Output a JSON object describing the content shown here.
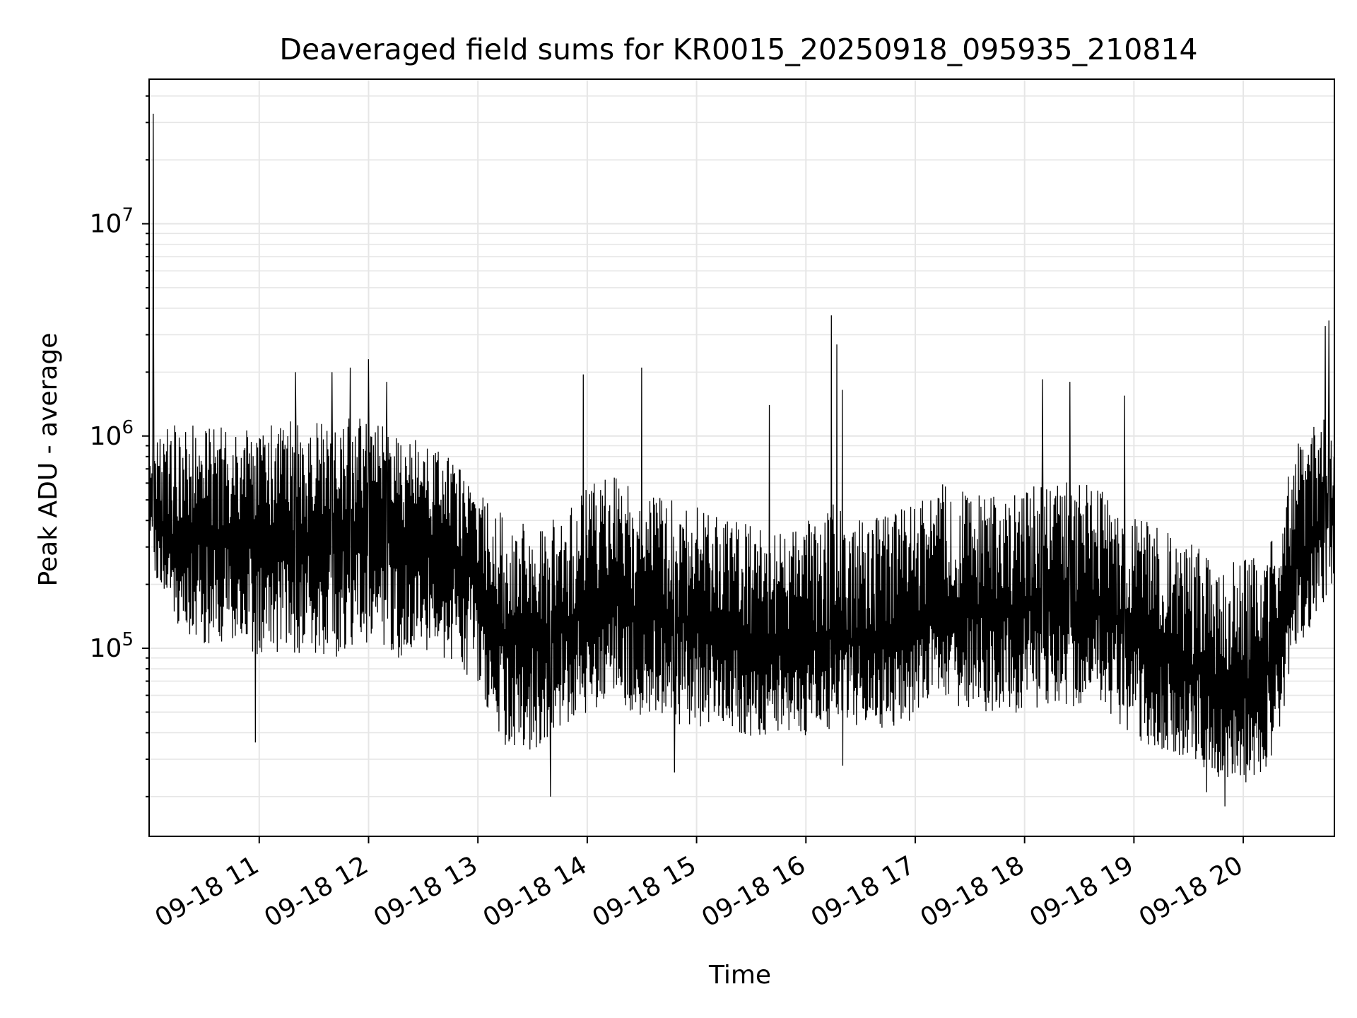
{
  "chart_data": {
    "type": "line",
    "title": "Deaveraged field sums for KR0015_20250918_095935_210814",
    "xlabel": "Time",
    "ylabel": "Peak ADU - average",
    "x_tick_labels": [
      "09-18 11",
      "09-18 12",
      "09-18 13",
      "09-18 14",
      "09-18 15",
      "09-18 16",
      "09-18 17",
      "09-18 18",
      "09-18 19",
      "09-18 20"
    ],
    "xlim": [
      "2025-09-18 09:59:35",
      "2025-09-18 20:50:00"
    ],
    "y_scale": "log",
    "y_tick_labels": [
      {
        "value": 100000,
        "mantissa": "10",
        "exponent": "5"
      },
      {
        "value": 1000000,
        "mantissa": "10",
        "exponent": "6"
      },
      {
        "value": 10000000,
        "mantissa": "10",
        "exponent": "7"
      }
    ],
    "ylim": [
      13000,
      48000000
    ],
    "grid": true,
    "line_color": "#000000",
    "grid_color": "#e6e6e6",
    "series": [
      {
        "x": [
          "09:59:35",
          "10:15",
          "10:30",
          "10:45",
          "11:00",
          "11:15",
          "11:30",
          "11:45",
          "12:00",
          "12:15",
          "12:30",
          "12:45",
          "13:00",
          "13:15",
          "13:30",
          "13:45",
          "14:00",
          "14:15",
          "14:30",
          "14:45",
          "15:00",
          "15:15",
          "15:30",
          "15:45",
          "16:00",
          "16:15",
          "16:30",
          "16:45",
          "17:00",
          "17:15",
          "17:30",
          "17:45",
          "18:00",
          "18:15",
          "18:30",
          "18:45",
          "19:00",
          "19:15",
          "19:30",
          "19:45",
          "20:00",
          "20:15",
          "20:30",
          "20:50"
        ],
        "median": [
          450000,
          300000,
          330000,
          320000,
          300000,
          290000,
          310000,
          330000,
          340000,
          320000,
          300000,
          280000,
          200000,
          120000,
          110000,
          120000,
          150000,
          170000,
          150000,
          140000,
          130000,
          110000,
          100000,
          95000,
          100000,
          120000,
          105000,
          110000,
          130000,
          160000,
          150000,
          140000,
          150000,
          170000,
          160000,
          150000,
          110000,
          90000,
          85000,
          70000,
          60000,
          80000,
          250000,
          450000
        ],
        "lower": [
          250000,
          130000,
          100000,
          110000,
          90000,
          95000,
          95000,
          90000,
          100000,
          90000,
          90000,
          85000,
          65000,
          35000,
          32000,
          40000,
          50000,
          55000,
          48000,
          45000,
          42000,
          40000,
          38000,
          37000,
          38000,
          42000,
          40000,
          42000,
          45000,
          55000,
          52000,
          48000,
          50000,
          55000,
          52000,
          50000,
          38000,
          32000,
          30000,
          25000,
          22000,
          28000,
          100000,
          200000
        ],
        "upper": [
          900000,
          1200000,
          1100000,
          1100000,
          1100000,
          1200000,
          1150000,
          1200000,
          1250000,
          1000000,
          950000,
          800000,
          550000,
          420000,
          380000,
          430000,
          580000,
          650000,
          560000,
          520000,
          470000,
          420000,
          380000,
          360000,
          400000,
          480000,
          400000,
          420000,
          500000,
          600000,
          560000,
          520000,
          560000,
          650000,
          600000,
          560000,
          430000,
          360000,
          330000,
          300000,
          260000,
          330000,
          950000,
          1500000
        ],
        "spikes": [
          {
            "x": "10:02",
            "y": 33000000
          },
          {
            "x": "10:02",
            "y": 2500000
          },
          {
            "x": "12:00",
            "y": 2300000
          },
          {
            "x": "11:40",
            "y": 2000000
          },
          {
            "x": "11:20",
            "y": 2000000
          },
          {
            "x": "11:50",
            "y": 2100000
          },
          {
            "x": "12:10",
            "y": 1800000
          },
          {
            "x": "13:58",
            "y": 1950000
          },
          {
            "x": "14:30",
            "y": 2100000
          },
          {
            "x": "15:40",
            "y": 1400000
          },
          {
            "x": "16:14",
            "y": 3700000
          },
          {
            "x": "16:17",
            "y": 2700000
          },
          {
            "x": "16:20",
            "y": 1650000
          },
          {
            "x": "18:10",
            "y": 1850000
          },
          {
            "x": "18:25",
            "y": 1800000
          },
          {
            "x": "18:55",
            "y": 1550000
          },
          {
            "x": "20:45",
            "y": 3300000
          },
          {
            "x": "20:47",
            "y": 3500000
          },
          {
            "x": "13:40",
            "y": 20000
          },
          {
            "x": "14:48",
            "y": 26000
          },
          {
            "x": "19:50",
            "y": 18000
          },
          {
            "x": "19:40",
            "y": 21000
          },
          {
            "x": "10:58",
            "y": 36000
          },
          {
            "x": "16:20",
            "y": 28000
          }
        ]
      }
    ]
  }
}
